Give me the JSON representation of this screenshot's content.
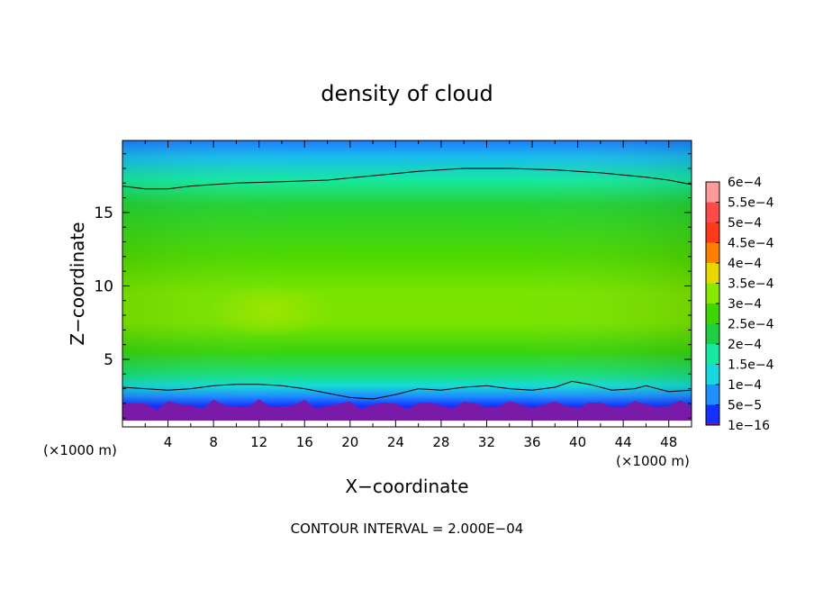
{
  "chart_data": {
    "type": "heatmap",
    "title": "density of cloud",
    "xlabel": "X−coordinate",
    "ylabel": "Z−coordinate",
    "x_unit_left": "(×1000 m)",
    "x_unit_right": "(×1000 m)",
    "xlim": [
      0,
      50
    ],
    "ylim": [
      0.4,
      19.9
    ],
    "x_ticks": [
      4,
      8,
      12,
      16,
      20,
      24,
      28,
      32,
      36,
      40,
      44,
      48
    ],
    "y_ticks": [
      5,
      10,
      15
    ],
    "contour_interval_text": "CONTOUR INTERVAL = 2.000E−04",
    "colorbar": {
      "levels": [
        {
          "label": "6e−4",
          "value": 0.0006,
          "color": "#ff9a9a"
        },
        {
          "label": "5.5e−4",
          "value": 0.00055,
          "color": "#ff4a4a"
        },
        {
          "label": "5e−4",
          "value": 0.0005,
          "color": "#ff3a1a"
        },
        {
          "label": "4.5e−4",
          "value": 0.00045,
          "color": "#ff8000"
        },
        {
          "label": "4e−4",
          "value": 0.0004,
          "color": "#e8d800"
        },
        {
          "label": "3.5e−4",
          "value": 0.00035,
          "color": "#88e800"
        },
        {
          "label": "3e−4",
          "value": 0.0003,
          "color": "#40d400"
        },
        {
          "label": "2.5e−4",
          "value": 0.00025,
          "color": "#1ed040"
        },
        {
          "label": "2e−4",
          "value": 0.0002,
          "color": "#16e8a0"
        },
        {
          "label": "1.5e−4",
          "value": 0.00015,
          "color": "#16d8e0"
        },
        {
          "label": "1e−4",
          "value": 0.0001,
          "color": "#1e90ff"
        },
        {
          "label": "5e−5",
          "value": 5e-05,
          "color": "#1430ff"
        },
        {
          "label": "1e−16",
          "value": 1e-16,
          "color": "#0000b0"
        }
      ],
      "bottom_color": "#7a1aa8"
    },
    "field": {
      "bands": [
        {
          "z": 19.9,
          "value": 9e-05
        },
        {
          "z": 18.8,
          "value": 0.00013
        },
        {
          "z": 17.2,
          "value": 0.0002
        },
        {
          "z": 15.5,
          "value": 0.00026
        },
        {
          "z": 12.0,
          "value": 0.00031
        },
        {
          "z": 9.5,
          "value": 0.00034
        },
        {
          "z": 7.5,
          "value": 0.00034
        },
        {
          "z": 5.5,
          "value": 0.00029
        },
        {
          "z": 4.0,
          "value": 0.00022
        },
        {
          "z": 3.2,
          "value": 0.00016
        },
        {
          "z": 2.5,
          "value": 0.0001
        },
        {
          "z": 1.8,
          "value": 5e-05
        },
        {
          "z": 1.2,
          "value": 0.0
        }
      ],
      "upper_contour": [
        [
          0,
          16.8
        ],
        [
          2,
          16.6
        ],
        [
          4,
          16.6
        ],
        [
          6,
          16.8
        ],
        [
          8,
          16.9
        ],
        [
          10,
          17.0
        ],
        [
          14,
          17.1
        ],
        [
          18,
          17.2
        ],
        [
          22,
          17.5
        ],
        [
          26,
          17.8
        ],
        [
          30,
          18.0
        ],
        [
          34,
          18.0
        ],
        [
          38,
          17.9
        ],
        [
          42,
          17.7
        ],
        [
          46,
          17.4
        ],
        [
          48,
          17.2
        ],
        [
          50,
          16.9
        ]
      ],
      "lower_contour": [
        [
          0,
          3.1
        ],
        [
          2,
          3.0
        ],
        [
          4,
          2.9
        ],
        [
          6,
          3.0
        ],
        [
          8,
          3.2
        ],
        [
          10,
          3.3
        ],
        [
          12,
          3.3
        ],
        [
          14,
          3.2
        ],
        [
          16,
          3.0
        ],
        [
          18,
          2.7
        ],
        [
          20,
          2.4
        ],
        [
          22,
          2.3
        ],
        [
          24,
          2.6
        ],
        [
          26,
          3.0
        ],
        [
          28,
          2.9
        ],
        [
          30,
          3.1
        ],
        [
          32,
          3.2
        ],
        [
          34,
          3.0
        ],
        [
          36,
          2.9
        ],
        [
          38,
          3.1
        ],
        [
          39.5,
          3.5
        ],
        [
          41,
          3.3
        ],
        [
          43,
          2.9
        ],
        [
          45,
          3.0
        ],
        [
          46,
          3.2
        ],
        [
          48,
          2.8
        ],
        [
          50,
          2.9
        ]
      ]
    }
  }
}
